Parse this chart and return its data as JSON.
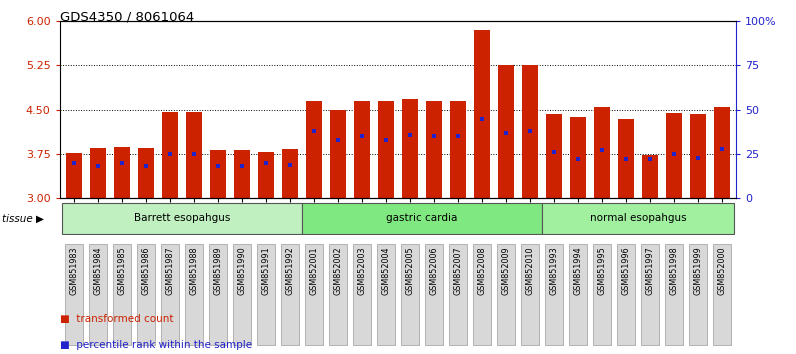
{
  "title": "GDS4350 / 8061064",
  "samples": [
    "GSM851983",
    "GSM851984",
    "GSM851985",
    "GSM851986",
    "GSM851987",
    "GSM851988",
    "GSM851989",
    "GSM851990",
    "GSM851991",
    "GSM851992",
    "GSM852001",
    "GSM852002",
    "GSM852003",
    "GSM852004",
    "GSM852005",
    "GSM852006",
    "GSM852007",
    "GSM852008",
    "GSM852009",
    "GSM852010",
    "GSM851993",
    "GSM851994",
    "GSM851995",
    "GSM851996",
    "GSM851997",
    "GSM851998",
    "GSM851999",
    "GSM852000"
  ],
  "bar_heights": [
    3.76,
    3.86,
    3.87,
    3.85,
    4.47,
    4.46,
    3.82,
    3.82,
    3.79,
    3.84,
    4.65,
    4.5,
    4.65,
    4.65,
    4.68,
    4.65,
    4.65,
    5.85,
    5.25,
    5.25,
    4.42,
    4.38,
    4.55,
    4.35,
    3.73,
    4.45,
    4.42,
    4.55
  ],
  "percentile_ranks": [
    20,
    18,
    20,
    18,
    25,
    25,
    18,
    18,
    20,
    19,
    38,
    33,
    35,
    33,
    36,
    35,
    35,
    45,
    37,
    38,
    26,
    22,
    27,
    22,
    22,
    25,
    23,
    28
  ],
  "groups": [
    {
      "label": "Barrett esopahgus",
      "start": 0,
      "end": 10,
      "color": "#c0f0c0"
    },
    {
      "label": "gastric cardia",
      "start": 10,
      "end": 20,
      "color": "#80e880"
    },
    {
      "label": "normal esopahgus",
      "start": 20,
      "end": 28,
      "color": "#a0f0a0"
    }
  ],
  "ylim_left": [
    3.0,
    6.0
  ],
  "ylim_right": [
    0,
    100
  ],
  "yticks_left": [
    3.0,
    3.75,
    4.5,
    5.25,
    6.0
  ],
  "yticks_right": [
    0,
    25,
    50,
    75,
    100
  ],
  "ytick_labels_right": [
    "0",
    "25",
    "50",
    "75",
    "100%"
  ],
  "hlines": [
    3.75,
    4.5,
    5.25
  ],
  "bar_color": "#cc2200",
  "marker_color": "#2222cc",
  "bg_color": "#ffffff",
  "bar_width": 0.65,
  "legend_items": [
    {
      "label": "transformed count",
      "color": "#cc2200"
    },
    {
      "label": "percentile rank within the sample",
      "color": "#2222cc"
    }
  ],
  "tissue_label": "tissue",
  "left_axis_color": "#cc2200",
  "right_axis_color": "#2222cc",
  "xtick_bg": "#d8d8d8"
}
